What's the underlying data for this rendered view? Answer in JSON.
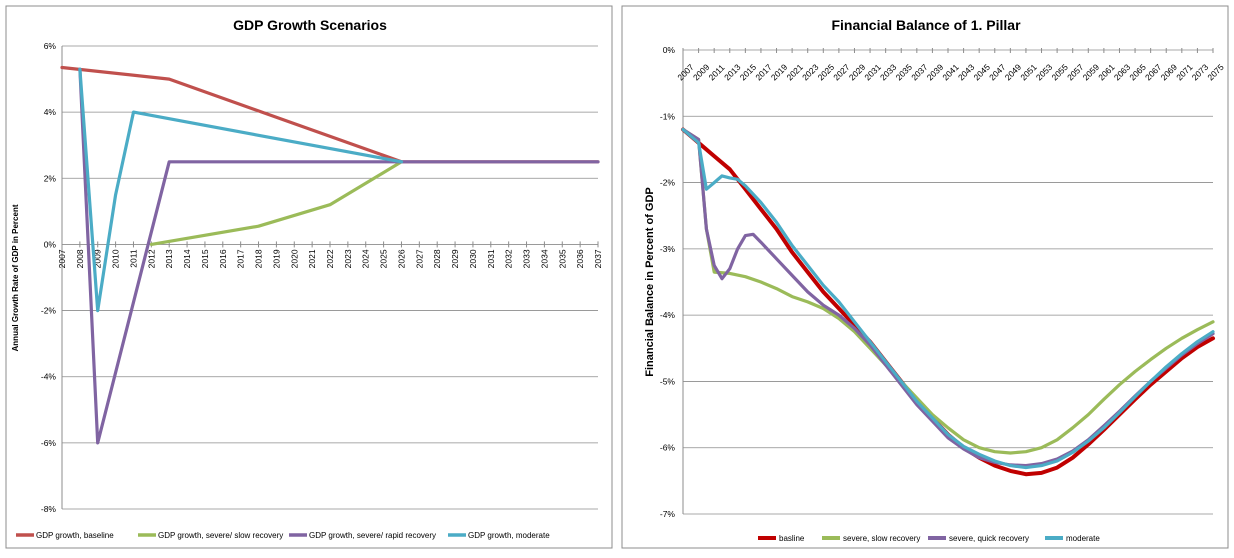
{
  "chart_data": [
    {
      "type": "line",
      "title": "GDP Growth Scenarios",
      "ylabel": "Annual Growth Rate of GDP in Percent",
      "xlabel": "",
      "categories": [
        "2007",
        "2008",
        "2009",
        "2010",
        "2011",
        "2012",
        "2013",
        "2014",
        "2015",
        "2016",
        "2017",
        "2018",
        "2019",
        "2020",
        "2021",
        "2022",
        "2023",
        "2024",
        "2025",
        "2026",
        "2027",
        "2028",
        "2029",
        "2030",
        "2031",
        "2032",
        "2033",
        "2034",
        "2035",
        "2036",
        "2037"
      ],
      "ylim": [
        -8,
        6
      ],
      "yticks": [
        6,
        4,
        2,
        0,
        -2,
        -4,
        -6,
        -8
      ],
      "ytick_labels": [
        "6%",
        "4%",
        "2%",
        "0%",
        "-2%",
        "-4%",
        "-6%",
        "-8%"
      ],
      "grid": true,
      "legend": "bottom",
      "series": [
        {
          "name": "GDP growth, baseline",
          "color": "#c0504d",
          "points": [
            [
              "2007",
              5.35
            ],
            [
              "2013",
              5.0
            ],
            [
              "2026",
              2.5
            ],
            [
              "2037",
              2.5
            ]
          ]
        },
        {
          "name": "GDP growth, severe/ slow recovery",
          "color": "#9bbb59",
          "points": [
            [
              "2012",
              0.0
            ],
            [
              "2018",
              0.55
            ],
            [
              "2022",
              1.2
            ],
            [
              "2026",
              2.5
            ]
          ]
        },
        {
          "name": "GDP growth, severe/ rapid recovery",
          "color": "#8064a2",
          "points": [
            [
              "2008",
              5.3
            ],
            [
              "2009",
              -6.0
            ],
            [
              "2013",
              2.5
            ],
            [
              "2037",
              2.5
            ]
          ]
        },
        {
          "name": "GDP growth, moderate",
          "color": "#4bacc6",
          "points": [
            [
              "2008",
              5.3
            ],
            [
              "2009",
              -2.0
            ],
            [
              "2010",
              1.5
            ],
            [
              "2011",
              4.0
            ],
            [
              "2026",
              2.5
            ]
          ]
        }
      ]
    },
    {
      "type": "line",
      "title": "Financial Balance of 1. Pillar",
      "ylabel": "Financial Balance in Percent of GDP",
      "xlabel": "",
      "categories": [
        "2007",
        "2009",
        "2011",
        "2013",
        "2015",
        "2017",
        "2019",
        "2021",
        "2023",
        "2025",
        "2027",
        "2029",
        "2031",
        "2033",
        "2035",
        "2037",
        "2039",
        "2041",
        "2043",
        "2045",
        "2047",
        "2049",
        "2051",
        "2053",
        "2055",
        "2057",
        "2059",
        "2061",
        "2063",
        "2065",
        "2067",
        "2069",
        "2071",
        "2073",
        "2075"
      ],
      "xrange": [
        2007,
        2075
      ],
      "ylim": [
        -7,
        0
      ],
      "yticks": [
        0,
        -1,
        -2,
        -3,
        -4,
        -5,
        -6,
        -7
      ],
      "ytick_labels": [
        "0%",
        "-1%",
        "-2%",
        "-3%",
        "-4%",
        "-5%",
        "-6%",
        "-7%"
      ],
      "grid": true,
      "legend": "bottom",
      "series": [
        {
          "name": "basline",
          "color": "#c00000",
          "x": [
            2007,
            2009,
            2011,
            2013,
            2015,
            2017,
            2019,
            2021,
            2023,
            2025,
            2027,
            2029,
            2031,
            2033,
            2035,
            2037,
            2039,
            2041,
            2043,
            2045,
            2047,
            2049,
            2051,
            2053,
            2055,
            2057,
            2059,
            2061,
            2063,
            2065,
            2067,
            2069,
            2071,
            2073,
            2075
          ],
          "y": [
            -1.2,
            -1.4,
            -1.6,
            -1.8,
            -2.1,
            -2.4,
            -2.7,
            -3.05,
            -3.35,
            -3.65,
            -3.9,
            -4.15,
            -4.4,
            -4.7,
            -5.0,
            -5.3,
            -5.55,
            -5.8,
            -6.0,
            -6.15,
            -6.27,
            -6.35,
            -6.4,
            -6.38,
            -6.3,
            -6.15,
            -5.95,
            -5.73,
            -5.5,
            -5.27,
            -5.05,
            -4.85,
            -4.65,
            -4.48,
            -4.35
          ]
        },
        {
          "name": "severe, slow recovery",
          "color": "#9bbb59",
          "x": [
            2007,
            2009,
            2010,
            2011,
            2013,
            2015,
            2017,
            2019,
            2021,
            2023,
            2025,
            2027,
            2029,
            2031,
            2033,
            2035,
            2037,
            2039,
            2041,
            2043,
            2045,
            2047,
            2049,
            2051,
            2053,
            2055,
            2057,
            2059,
            2061,
            2063,
            2065,
            2067,
            2069,
            2071,
            2073,
            2075
          ],
          "y": [
            -1.2,
            -1.35,
            -2.7,
            -3.35,
            -3.37,
            -3.42,
            -3.5,
            -3.6,
            -3.72,
            -3.8,
            -3.9,
            -4.05,
            -4.25,
            -4.5,
            -4.75,
            -5.0,
            -5.25,
            -5.5,
            -5.7,
            -5.88,
            -6.0,
            -6.06,
            -6.08,
            -6.06,
            -6.0,
            -5.88,
            -5.7,
            -5.5,
            -5.27,
            -5.05,
            -4.85,
            -4.67,
            -4.5,
            -4.35,
            -4.22,
            -4.1
          ]
        },
        {
          "name": "severe, quick recovery",
          "color": "#8064a2",
          "x": [
            2007,
            2009,
            2010,
            2011,
            2012,
            2013,
            2014,
            2015,
            2016,
            2017,
            2019,
            2021,
            2023,
            2025,
            2027,
            2029,
            2031,
            2033,
            2035,
            2037,
            2039,
            2041,
            2043,
            2045,
            2047,
            2049,
            2051,
            2053,
            2055,
            2057,
            2059,
            2061,
            2063,
            2065,
            2067,
            2069,
            2071,
            2073,
            2075
          ],
          "y": [
            -1.2,
            -1.35,
            -2.7,
            -3.25,
            -3.45,
            -3.3,
            -3.0,
            -2.8,
            -2.78,
            -2.9,
            -3.15,
            -3.4,
            -3.65,
            -3.85,
            -4.0,
            -4.2,
            -4.45,
            -4.75,
            -5.05,
            -5.35,
            -5.6,
            -5.85,
            -6.02,
            -6.15,
            -6.22,
            -6.26,
            -6.27,
            -6.24,
            -6.17,
            -6.05,
            -5.88,
            -5.67,
            -5.45,
            -5.22,
            -5.0,
            -4.8,
            -4.6,
            -4.43,
            -4.28
          ]
        },
        {
          "name": "moderate",
          "color": "#4bacc6",
          "x": [
            2007,
            2009,
            2010,
            2011,
            2012,
            2013,
            2014,
            2015,
            2017,
            2019,
            2021,
            2023,
            2025,
            2027,
            2029,
            2031,
            2033,
            2035,
            2037,
            2039,
            2041,
            2043,
            2045,
            2047,
            2049,
            2051,
            2053,
            2055,
            2057,
            2059,
            2061,
            2063,
            2065,
            2067,
            2069,
            2071,
            2073,
            2075
          ],
          "y": [
            -1.2,
            -1.4,
            -2.1,
            -2.0,
            -1.9,
            -1.93,
            -1.95,
            -2.05,
            -2.3,
            -2.6,
            -2.95,
            -3.25,
            -3.55,
            -3.8,
            -4.1,
            -4.4,
            -4.7,
            -5.0,
            -5.3,
            -5.55,
            -5.8,
            -5.98,
            -6.1,
            -6.2,
            -6.27,
            -6.3,
            -6.27,
            -6.2,
            -6.07,
            -5.9,
            -5.7,
            -5.47,
            -5.23,
            -5.0,
            -4.78,
            -4.58,
            -4.4,
            -4.25
          ]
        }
      ]
    }
  ]
}
